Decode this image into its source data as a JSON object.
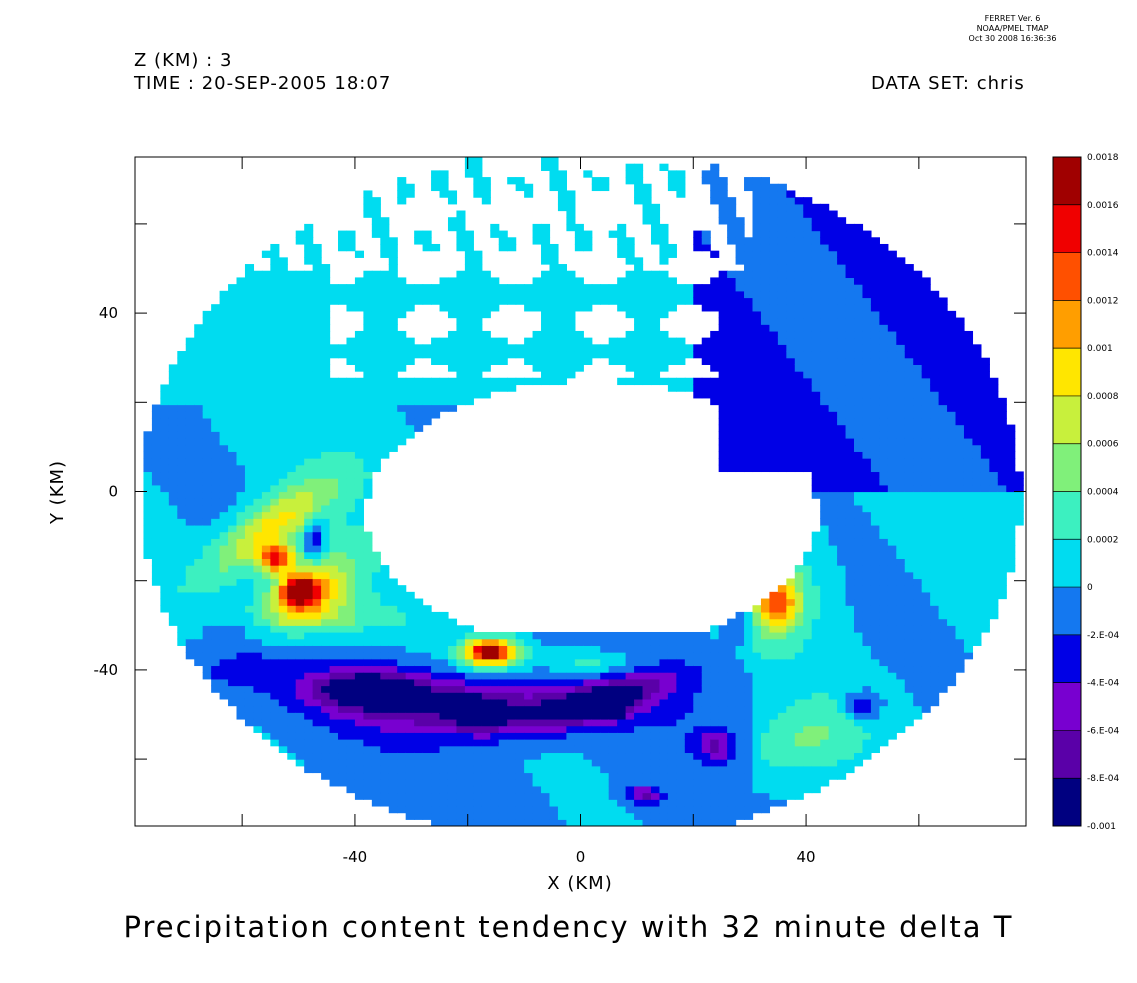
{
  "header": {
    "z_label": "Z (KM) : 3",
    "time_label": "TIME : 20-SEP-2005 18:07",
    "dataset_label": "DATA SET: chris",
    "ferret_lines": [
      "FERRET Ver. 6",
      "NOAA/PMEL TMAP",
      "Oct 30 2008 16:36:36"
    ]
  },
  "chart_data": {
    "type": "heatmap",
    "title": "Precipitation content tendency with 32 minute delta T",
    "xlabel": "X (KM)",
    "ylabel": "Y (KM)",
    "xlim": [
      -79,
      79
    ],
    "ylim": [
      -75,
      75
    ],
    "x_ticks": [
      -60,
      -40,
      -20,
      0,
      20,
      40,
      60
    ],
    "y_ticks": [
      -60,
      -40,
      -20,
      0,
      20,
      40,
      60
    ],
    "x_tick_labels": [
      {
        "value": -40,
        "label": "-40"
      },
      {
        "value": 0,
        "label": "0"
      },
      {
        "value": 40,
        "label": "40"
      }
    ],
    "y_tick_labels": [
      {
        "value": 40,
        "label": "40"
      },
      {
        "value": 0,
        "label": "0"
      },
      {
        "value": -40,
        "label": "-40"
      }
    ],
    "colorbar": {
      "levels": [
        -0.001,
        -0.0008,
        -0.0006,
        -0.0004,
        -0.0002,
        0,
        0.0002,
        0.0004,
        0.0006,
        0.0008,
        0.001,
        0.0012,
        0.0014,
        0.0016,
        0.0018
      ],
      "labels": [
        "-0.001",
        "-8.E-04",
        "-6.E-04",
        "-4.E-04",
        "-2.E-04",
        "0",
        "0.0002",
        "0.0004",
        "0.0006",
        "0.0008",
        "0.001",
        "0.0012",
        "0.0014",
        "0.0016",
        "0.0018"
      ],
      "colors": [
        "#000080",
        "#5a00a8",
        "#7800d0",
        "#0000e6",
        "#1478f0",
        "#00dcf0",
        "#3cf0c0",
        "#80f07a",
        "#c8f03c",
        "#ffe600",
        "#ff9e00",
        "#ff5000",
        "#f00000",
        "#a00000"
      ]
    },
    "domain": {
      "center": [
        0,
        -1
      ],
      "outer_radius": 78,
      "inner_hole_radius": 32
    }
  }
}
